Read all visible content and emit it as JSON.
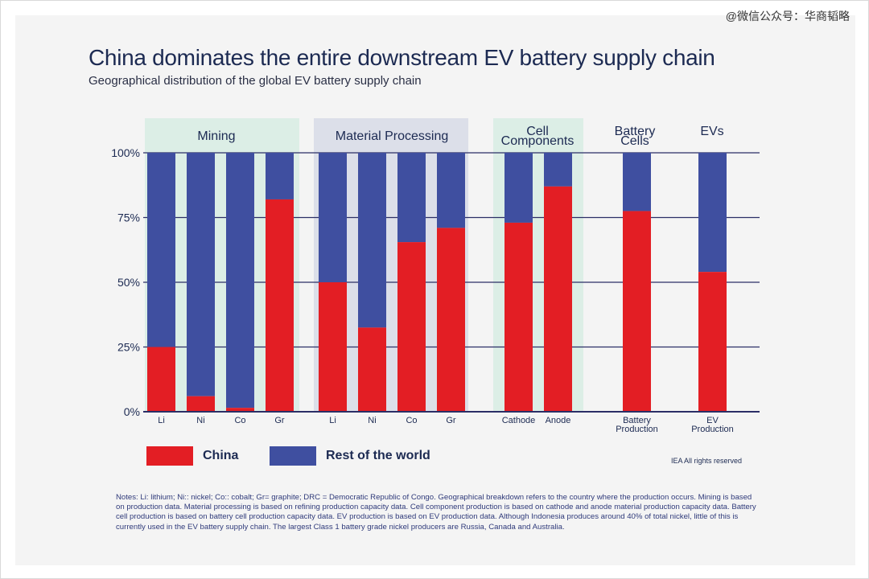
{
  "watermark": "@微信公众号：华商韬略",
  "title": "China dominates the entire downstream EV battery supply chain",
  "subtitle": "Geographical distribution of the global EV battery supply chain",
  "legend": {
    "china": "China",
    "rest": "Rest of the world"
  },
  "credit": "IEA All rights reserved",
  "notes": "Notes: Li: lithium; Ni:: nickel; Co:: cobalt; Gr= graphite; DRC = Democratic Republic of Congo. Geographical breakdown refers to the country where the production occurs. Mining is based on production data. Material processing is based on refining production capacity data. Cell component production is based on cathode and anode material production capacity data. Battery cell production is based on battery cell production capacity data. EV production is based on EV production data. Although Indonesia produces around 40% of total nickel, little of this is currently used in the EV battery supply chain. The largest Class 1 battery grade nickel producers are Russia, Canada and Australia.",
  "colors": {
    "china": "#e31e24",
    "rest": "#3f4fa0",
    "mining_band": "#dceee6",
    "processing_band": "#dcdfe9",
    "components_band": "#dceee6",
    "axis": "#2b2e66",
    "grid": "#2b2e66",
    "text": "#1c2a52"
  },
  "chart_data": {
    "type": "bar",
    "stacked": true,
    "ylim": [
      0,
      100
    ],
    "yticks": [
      "0%",
      "25%",
      "50%",
      "75%",
      "100%"
    ],
    "groups": [
      {
        "name": "Mining",
        "categories": [
          "Li",
          "Ni",
          "Co",
          "Gr"
        ]
      },
      {
        "name": "Material Processing",
        "categories": [
          "Li",
          "Ni",
          "Co",
          "Gr"
        ]
      },
      {
        "name": "Cell Components",
        "categories": [
          "Cathode",
          "Anode"
        ]
      },
      {
        "name": "Battery Cells",
        "categories": [
          "Battery Production"
        ]
      },
      {
        "name": "EVs",
        "categories": [
          "EV Production"
        ]
      }
    ],
    "series": [
      {
        "name": "China",
        "values": [
          25,
          6,
          1.5,
          82,
          50,
          32.5,
          65.5,
          71,
          73,
          87,
          77.5,
          54
        ]
      },
      {
        "name": "Rest of the world",
        "values": [
          75,
          94,
          98.5,
          18,
          50,
          67.5,
          34.5,
          29,
          27,
          13,
          22.5,
          46
        ]
      }
    ]
  }
}
